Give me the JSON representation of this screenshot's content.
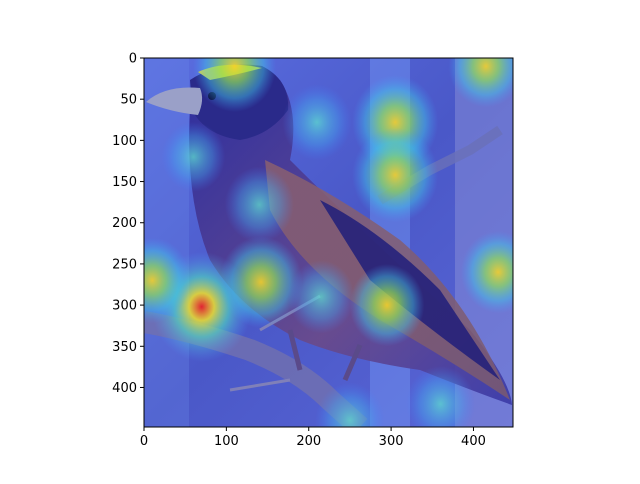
{
  "figure": {
    "image_description_icon": "bird-heatmap-overlay-icon",
    "colormap": "jet",
    "x_axis": {
      "range": [
        0,
        448
      ],
      "ticks": [
        {
          "value": 0,
          "label": "0"
        },
        {
          "value": 100,
          "label": "100"
        },
        {
          "value": 200,
          "label": "200"
        },
        {
          "value": 300,
          "label": "300"
        },
        {
          "value": 400,
          "label": "400"
        }
      ]
    },
    "y_axis": {
      "range": [
        0,
        448
      ],
      "inverted": true,
      "ticks": [
        {
          "value": 0,
          "label": "0"
        },
        {
          "value": 50,
          "label": "50"
        },
        {
          "value": 100,
          "label": "100"
        },
        {
          "value": 150,
          "label": "150"
        },
        {
          "value": 200,
          "label": "200"
        },
        {
          "value": 250,
          "label": "250"
        },
        {
          "value": 300,
          "label": "300"
        },
        {
          "value": 350,
          "label": "350"
        },
        {
          "value": 400,
          "label": "400"
        }
      ]
    },
    "hotspots": [
      {
        "x": 70,
        "y": 302,
        "intensity": 1.0
      },
      {
        "x": 305,
        "y": 78,
        "intensity": 0.75
      },
      {
        "x": 305,
        "y": 142,
        "intensity": 0.75
      },
      {
        "x": 142,
        "y": 272,
        "intensity": 0.7
      },
      {
        "x": 295,
        "y": 300,
        "intensity": 0.55
      },
      {
        "x": 210,
        "y": 78,
        "intensity": 0.45
      },
      {
        "x": 140,
        "y": 178,
        "intensity": 0.45
      },
      {
        "x": 215,
        "y": 290,
        "intensity": 0.4
      },
      {
        "x": 10,
        "y": 270,
        "intensity": 0.6
      },
      {
        "x": 110,
        "y": 10,
        "intensity": 0.7
      },
      {
        "x": 415,
        "y": 10,
        "intensity": 0.55
      },
      {
        "x": 430,
        "y": 260,
        "intensity": 0.55
      },
      {
        "x": 360,
        "y": 420,
        "intensity": 0.45
      },
      {
        "x": 250,
        "y": 440,
        "intensity": 0.45
      },
      {
        "x": 60,
        "y": 120,
        "intensity": 0.35
      }
    ]
  }
}
